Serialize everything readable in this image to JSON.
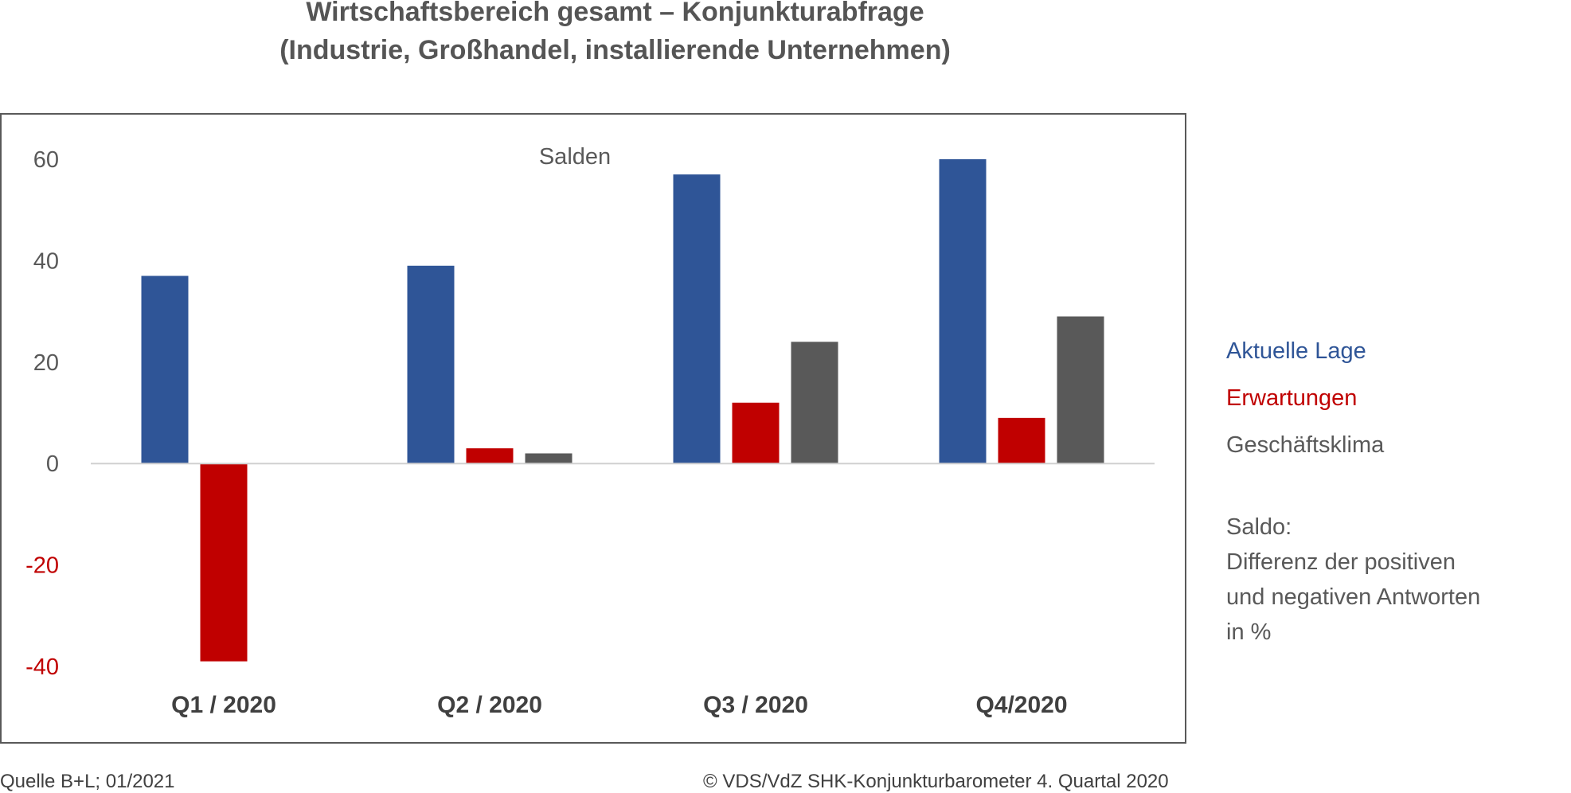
{
  "header": {
    "title_line1": "Wirtschaftsbereich gesamt – Konjunkturabfrage",
    "title_line2": "(Industrie, Großhandel, installierende Unternehmen)"
  },
  "chart_data": {
    "type": "bar",
    "subtitle": "Salden",
    "categories": [
      "Q1 / 2020",
      "Q2 / 2020",
      "Q3 / 2020",
      "Q4/2020"
    ],
    "series": [
      {
        "name": "Aktuelle Lage",
        "color": "#2f5597",
        "values": [
          37,
          39,
          57,
          60
        ]
      },
      {
        "name": "Erwartungen",
        "color": "#c00000",
        "values": [
          -39,
          3,
          12,
          9
        ]
      },
      {
        "name": "Geschäftsklima",
        "color": "#595959",
        "values": [
          null,
          2,
          24,
          29
        ]
      }
    ],
    "ylim": [
      -40,
      60
    ],
    "yticks": [
      {
        "value": 60,
        "label": "60",
        "color": "#595959"
      },
      {
        "value": 40,
        "label": "40",
        "color": "#595959"
      },
      {
        "value": 20,
        "label": "20",
        "color": "#595959"
      },
      {
        "value": 0,
        "label": "0",
        "color": "#595959"
      },
      {
        "value": -20,
        "label": "-20",
        "color": "#c00000"
      },
      {
        "value": -40,
        "label": "-40",
        "color": "#c00000"
      }
    ],
    "xlabel": "",
    "ylabel": "",
    "grid": false,
    "legend_position": "right"
  },
  "legend": {
    "items": [
      {
        "label": "Aktuelle Lage",
        "color": "#2f5597"
      },
      {
        "label": "Erwartungen",
        "color": "#c00000"
      },
      {
        "label": "Geschäftsklima",
        "color": "#595959"
      }
    ]
  },
  "note": {
    "line1": "Saldo:",
    "line2": "Differenz der positiven",
    "line3": "und negativen Antworten",
    "line4": "in %"
  },
  "footer": {
    "source": "Quelle B+L; 01/2021",
    "copyright": "© VDS/VdZ SHK-Konjunkturbarometer 4. Quartal 2020"
  }
}
